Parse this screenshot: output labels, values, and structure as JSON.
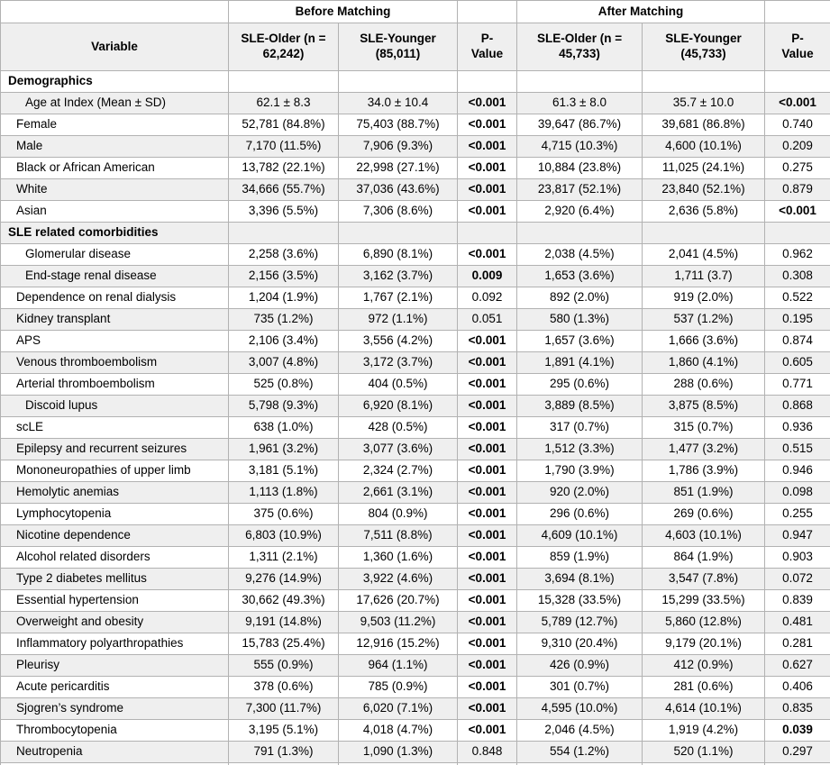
{
  "table": {
    "groups": {
      "before": "Before Matching",
      "after": "After Matching"
    },
    "columns": {
      "variable": "Variable",
      "older_before": "SLE-Older (n = 62,242)",
      "younger_before": "SLE-Younger (85,011)",
      "p_before": "P-Value",
      "older_after": "SLE-Older (n = 45,733)",
      "younger_after": "SLE-Younger (45,733)",
      "p_after": "P-Value"
    },
    "rows": [
      {
        "label": "Demographics",
        "section": true,
        "values": [
          "",
          "",
          "",
          "",
          "",
          ""
        ],
        "bold": []
      },
      {
        "label": "Age at Index (Mean ± SD)",
        "indent": 2,
        "values": [
          "62.1 ± 8.3",
          "34.0 ± 10.4",
          "<0.001",
          "61.3 ± 8.0",
          "35.7 ± 10.0",
          "<0.001"
        ],
        "bold": [
          2,
          5
        ]
      },
      {
        "label": "Female",
        "indent": 1,
        "values": [
          "52,781 (84.8%)",
          "75,403 (88.7%)",
          "<0.001",
          "39,647 (86.7%)",
          "39,681 (86.8%)",
          "0.740"
        ],
        "bold": [
          2
        ]
      },
      {
        "label": "Male",
        "indent": 1,
        "values": [
          "7,170 (11.5%)",
          "7,906 (9.3%)",
          "<0.001",
          "4,715 (10.3%)",
          "4,600 (10.1%)",
          "0.209"
        ],
        "bold": [
          2
        ]
      },
      {
        "label": "Black or African American",
        "indent": 1,
        "values": [
          "13,782 (22.1%)",
          "22,998 (27.1%)",
          "<0.001",
          "10,884 (23.8%)",
          "11,025 (24.1%)",
          "0.275"
        ],
        "bold": [
          2
        ]
      },
      {
        "label": "White",
        "indent": 1,
        "values": [
          "34,666 (55.7%)",
          "37,036 (43.6%)",
          "<0.001",
          "23,817 (52.1%)",
          "23,840 (52.1%)",
          "0.879"
        ],
        "bold": [
          2
        ]
      },
      {
        "label": "Asian",
        "indent": 1,
        "values": [
          "3,396 (5.5%)",
          "7,306 (8.6%)",
          "<0.001",
          "2,920 (6.4%)",
          "2,636 (5.8%)",
          "<0.001"
        ],
        "bold": [
          2,
          5
        ]
      },
      {
        "label": "SLE related comorbidities",
        "section": true,
        "values": [
          "",
          "",
          "",
          "",
          "",
          ""
        ],
        "bold": []
      },
      {
        "label": "Glomerular disease",
        "indent": 2,
        "values": [
          "2,258 (3.6%)",
          "6,890 (8.1%)",
          "<0.001",
          "2,038 (4.5%)",
          "2,041 (4.5%)",
          "0.962"
        ],
        "bold": [
          2
        ]
      },
      {
        "label": "End-stage renal disease",
        "indent": 2,
        "values": [
          "2,156 (3.5%)",
          "3,162 (3.7%)",
          "0.009",
          "1,653 (3.6%)",
          "1,711 (3.7)",
          "0.308"
        ],
        "bold": [
          2
        ]
      },
      {
        "label": "Dependence on renal dialysis",
        "indent": 1,
        "values": [
          "1,204 (1.9%)",
          "1,767 (2.1%)",
          "0.092",
          "892 (2.0%)",
          "919 (2.0%)",
          "0.522"
        ],
        "bold": []
      },
      {
        "label": "Kidney transplant",
        "indent": 1,
        "values": [
          "735 (1.2%)",
          "972 (1.1%)",
          "0.051",
          "580 (1.3%)",
          "537 (1.2%)",
          "0.195"
        ],
        "bold": []
      },
      {
        "label": "APS",
        "indent": 1,
        "values": [
          "2,106 (3.4%)",
          "3,556 (4.2%)",
          "<0.001",
          "1,657 (3.6%)",
          "1,666 (3.6%)",
          "0.874"
        ],
        "bold": [
          2
        ]
      },
      {
        "label": "Venous thromboembolism",
        "indent": 1,
        "values": [
          "3,007 (4.8%)",
          "3,172 (3.7%)",
          "<0.001",
          "1,891 (4.1%)",
          "1,860 (4.1%)",
          "0.605"
        ],
        "bold": [
          2
        ]
      },
      {
        "label": "Arterial thromboembolism",
        "indent": 1,
        "values": [
          "525 (0.8%)",
          "404 (0.5%)",
          "<0.001",
          "295 (0.6%)",
          "288 (0.6%)",
          "0.771"
        ],
        "bold": [
          2
        ]
      },
      {
        "label": "Discoid lupus",
        "indent": 2,
        "values": [
          "5,798 (9.3%)",
          "6,920 (8.1%)",
          "<0.001",
          "3,889 (8.5%)",
          "3,875 (8.5%)",
          "0.868"
        ],
        "bold": [
          2
        ]
      },
      {
        "label": "scLE",
        "indent": 1,
        "values": [
          "638 (1.0%)",
          "428 (0.5%)",
          "<0.001",
          "317 (0.7%)",
          "315 (0.7%)",
          "0.936"
        ],
        "bold": [
          2
        ]
      },
      {
        "label": "Epilepsy and recurrent seizures",
        "indent": 1,
        "values": [
          "1,961 (3.2%)",
          "3,077 (3.6%)",
          "<0.001",
          "1,512 (3.3%)",
          "1,477 (3.2%)",
          "0.515"
        ],
        "bold": [
          2
        ]
      },
      {
        "label": "Mononeuropathies of upper limb",
        "indent": 1,
        "values": [
          "3,181 (5.1%)",
          "2,324 (2.7%)",
          "<0.001",
          "1,790 (3.9%)",
          "1,786 (3.9%)",
          "0.946"
        ],
        "bold": [
          2
        ]
      },
      {
        "label": "Hemolytic anemias",
        "indent": 1,
        "values": [
          "1,113 (1.8%)",
          "2,661 (3.1%)",
          "<0.001",
          "920 (2.0%)",
          "851 (1.9%)",
          "0.098"
        ],
        "bold": [
          2
        ]
      },
      {
        "label": "Lymphocytopenia",
        "indent": 1,
        "values": [
          "375 (0.6%)",
          "804 (0.9%)",
          "<0.001",
          "296 (0.6%)",
          "269 (0.6%)",
          "0.255"
        ],
        "bold": [
          2
        ]
      },
      {
        "label": "Nicotine dependence",
        "indent": 1,
        "values": [
          "6,803 (10.9%)",
          "7,511 (8.8%)",
          "<0.001",
          "4,609 (10.1%)",
          "4,603 (10.1%)",
          "0.947"
        ],
        "bold": [
          2
        ]
      },
      {
        "label": "Alcohol related disorders",
        "indent": 1,
        "values": [
          "1,311 (2.1%)",
          "1,360 (1.6%)",
          "<0.001",
          "859 (1.9%)",
          "864 (1.9%)",
          "0.903"
        ],
        "bold": [
          2
        ]
      },
      {
        "label": "Type 2 diabetes mellitus",
        "indent": 1,
        "values": [
          "9,276 (14.9%)",
          "3,922 (4.6%)",
          "<0.001",
          "3,694 (8.1%)",
          "3,547 (7.8%)",
          "0.072"
        ],
        "bold": [
          2
        ]
      },
      {
        "label": "Essential hypertension",
        "indent": 1,
        "values": [
          "30,662 (49.3%)",
          "17,626 (20.7%)",
          "<0.001",
          "15,328 (33.5%)",
          "15,299 (33.5%)",
          "0.839"
        ],
        "bold": [
          2
        ]
      },
      {
        "label": "Overweight and obesity",
        "indent": 1,
        "values": [
          "9,191 (14.8%)",
          "9,503 (11.2%)",
          "<0.001",
          "5,789 (12.7%)",
          "5,860 (12.8%)",
          "0.481"
        ],
        "bold": [
          2
        ]
      },
      {
        "label": "Inflammatory polyarthropathies",
        "indent": 1,
        "values": [
          "15,783 (25.4%)",
          "12,916 (15.2%)",
          "<0.001",
          "9,310 (20.4%)",
          "9,179 (20.1%)",
          "0.281"
        ],
        "bold": [
          2
        ]
      },
      {
        "label": "Pleurisy",
        "indent": 1,
        "values": [
          "555 (0.9%)",
          "964 (1.1%)",
          "<0.001",
          "426 (0.9%)",
          "412 (0.9%)",
          "0.627"
        ],
        "bold": [
          2
        ]
      },
      {
        "label": "Acute pericarditis",
        "indent": 1,
        "values": [
          "378 (0.6%)",
          "785 (0.9%)",
          "<0.001",
          "301 (0.7%)",
          "281 (0.6%)",
          "0.406"
        ],
        "bold": [
          2
        ]
      },
      {
        "label": "Sjogren’s syndrome",
        "indent": 1,
        "values": [
          "7,300 (11.7%)",
          "6,020 (7.1%)",
          "<0.001",
          "4,595 (10.0%)",
          "4,614 (10.1%)",
          "0.835"
        ],
        "bold": [
          2
        ]
      },
      {
        "label": "Thrombocytopenia",
        "indent": 1,
        "values": [
          "3,195 (5.1%)",
          "4,018 (4.7%)",
          "<0.001",
          "2,046 (4.5%)",
          "1,919 (4.2%)",
          "0.039"
        ],
        "bold": [
          2,
          5
        ]
      },
      {
        "label": "Neutropenia",
        "indent": 1,
        "values": [
          "791 (1.3%)",
          "1,090 (1.3%)",
          "0.848",
          "554 (1.2%)",
          "520 (1.1%)",
          "0.297"
        ],
        "bold": []
      }
    ]
  },
  "colors": {
    "zebra_row": "#efefef",
    "header_bg": "#efefef",
    "border": "#b2b2b2",
    "text": "#000000"
  }
}
